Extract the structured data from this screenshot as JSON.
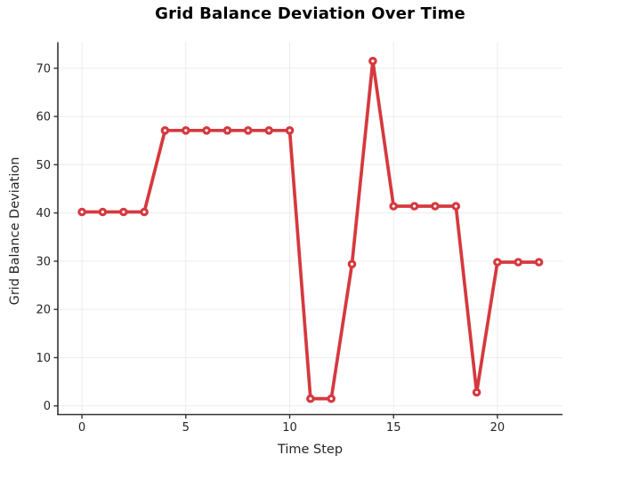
{
  "chart_data": {
    "type": "line",
    "title": "Grid Balance Deviation Over Time",
    "xlabel": "Time Step",
    "ylabel": "Grid Balance Deviation",
    "x": [
      0,
      1,
      2,
      3,
      4,
      5,
      6,
      7,
      8,
      9,
      10,
      11,
      12,
      13,
      14,
      15,
      16,
      17,
      18,
      19,
      20,
      21,
      22
    ],
    "y": [
      40.2,
      40.2,
      40.2,
      40.2,
      57.1,
      57.1,
      57.1,
      57.1,
      57.1,
      57.1,
      57.1,
      1.5,
      1.5,
      29.4,
      71.5,
      41.4,
      41.4,
      41.4,
      41.4,
      2.8,
      29.8,
      29.8,
      29.8
    ],
    "xticks": [
      0,
      5,
      10,
      15,
      20
    ],
    "yticks": [
      0,
      10,
      20,
      30,
      40,
      50,
      60,
      70
    ],
    "xlim": [
      -1.16,
      23.13
    ],
    "ylim": [
      -1.8,
      75.4
    ],
    "grid": true,
    "legend": false,
    "line_color": "#d5393f",
    "marker_shape": "circle",
    "marker_fill": "#ffffff",
    "line_width": 3.7,
    "marker_radius": 3.2,
    "marker_stroke_width": 3.2,
    "grid_color": "#ececec",
    "spine_color": "#333333",
    "tick_color": "#333333",
    "text_color": "#262626",
    "title_color": "#000000",
    "background": "#ffffff"
  }
}
